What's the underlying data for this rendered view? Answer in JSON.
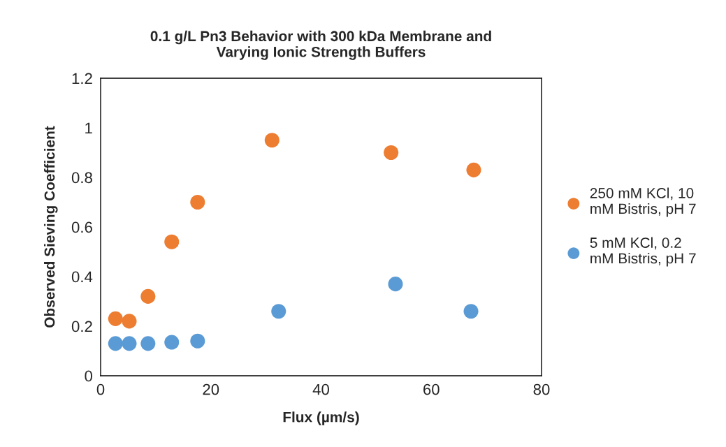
{
  "chart_data": {
    "type": "scatter",
    "title": "0.1 g/L Pn3 Behavior with 300 kDa Membrane and\nVarying Ionic Strength Buffers",
    "xlabel": "Flux (µm/s)",
    "ylabel": "Observed Sieving Coefficient",
    "series": [
      {
        "name": "250 mM KCl, 10\nmM Bistris, pH 7",
        "color": "#ed7d31",
        "x": [
          2.7,
          5.2,
          8.6,
          12.9,
          17.6,
          31.1,
          52.7,
          67.7
        ],
        "values": [
          0.23,
          0.22,
          0.32,
          0.54,
          0.7,
          0.95,
          0.9,
          0.83
        ]
      },
      {
        "name": "5 mM KCl, 0.2\nmM Bistris, pH 7",
        "color": "#5b9bd5",
        "x": [
          2.7,
          5.2,
          8.6,
          12.9,
          17.6,
          32.3,
          53.5,
          67.2
        ],
        "values": [
          0.13,
          0.13,
          0.13,
          0.135,
          0.14,
          0.26,
          0.37,
          0.26
        ]
      }
    ],
    "xlim": [
      0,
      80
    ],
    "xticks": [
      0,
      20,
      40,
      60,
      80
    ],
    "ylim": [
      0,
      1.2
    ],
    "yticks": [
      0,
      {
        "value": 0.2,
        "label": "0.2"
      },
      {
        "value": 0.4,
        "label": "0.4"
      },
      {
        "value": 0.6,
        "label": "0.6"
      },
      {
        "value": 0.8,
        "label": "0.8"
      },
      1,
      {
        "value": 1.2,
        "label": "1.2"
      }
    ],
    "grid": false,
    "legend": "right",
    "marker": "circle"
  }
}
